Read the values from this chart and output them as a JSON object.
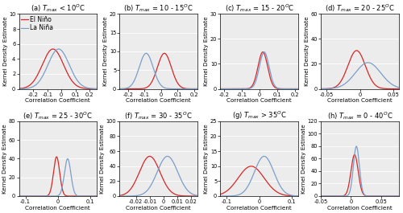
{
  "panels": [
    {
      "label": "(a)",
      "title_prefix": "T",
      "title_suffix": " < 10",
      "xlim": [
        -0.3,
        0.25
      ],
      "ylim": [
        0,
        10
      ],
      "yticks": [
        0,
        2,
        4,
        6,
        8,
        10
      ],
      "xticks": [
        -0.2,
        -0.1,
        0,
        0.1,
        0.2
      ],
      "el_nino_mean": -0.06,
      "el_nino_std": 0.075,
      "la_nina_mean": -0.02,
      "la_nina_std": 0.075,
      "show_legend": true
    },
    {
      "label": "(b)",
      "title_prefix": "T",
      "title_suffix": " = 10 - 15",
      "xlim": [
        -0.25,
        0.22
      ],
      "ylim": [
        0,
        20
      ],
      "yticks": [
        0,
        5,
        10,
        15,
        20
      ],
      "xticks": [
        -0.2,
        -0.1,
        0,
        0.1,
        0.2
      ],
      "el_nino_mean": 0.02,
      "el_nino_std": 0.042,
      "la_nina_mean": -0.09,
      "la_nina_std": 0.042,
      "show_legend": false
    },
    {
      "label": "(c)",
      "title_prefix": "T",
      "title_suffix": " = 15 - 20",
      "xlim": [
        -0.22,
        0.22
      ],
      "ylim": [
        0,
        30
      ],
      "yticks": [
        0,
        10,
        20,
        30
      ],
      "xticks": [
        -0.2,
        -0.1,
        0,
        0.1,
        0.2
      ],
      "el_nino_mean": 0.02,
      "el_nino_std": 0.027,
      "la_nina_mean": 0.028,
      "la_nina_std": 0.027,
      "show_legend": false
    },
    {
      "label": "(d)",
      "title_prefix": "T",
      "title_suffix": " = 20 - 25",
      "xlim": [
        -0.058,
        0.058
      ],
      "ylim": [
        0,
        60
      ],
      "yticks": [
        0,
        20,
        40,
        60
      ],
      "xticks": [
        -0.05,
        0,
        0.05
      ],
      "el_nino_mean": -0.005,
      "el_nino_std": 0.013,
      "la_nina_mean": 0.012,
      "la_nina_std": 0.019,
      "show_legend": false
    },
    {
      "label": "(e)",
      "title_prefix": "T",
      "title_suffix": " = 25 - 30",
      "xlim": [
        -0.12,
        0.12
      ],
      "ylim": [
        0,
        80
      ],
      "yticks": [
        0,
        20,
        40,
        60,
        80
      ],
      "xticks": [
        -0.1,
        0,
        0.1
      ],
      "el_nino_mean": -0.004,
      "el_nino_std": 0.0095,
      "la_nina_mean": 0.03,
      "la_nina_std": 0.01,
      "show_legend": false
    },
    {
      "label": "(f)",
      "title_prefix": "T",
      "title_suffix": " = 30 - 35",
      "xlim": [
        -0.032,
        0.025
      ],
      "ylim": [
        0,
        100
      ],
      "yticks": [
        0,
        20,
        40,
        60,
        80,
        100
      ],
      "xticks": [
        -0.02,
        -0.01,
        0,
        0.01,
        0.02
      ],
      "el_nino_mean": -0.01,
      "el_nino_std": 0.0075,
      "la_nina_mean": 0.003,
      "la_nina_std": 0.0075,
      "show_legend": false
    },
    {
      "label": "(g)",
      "title_prefix": "T",
      "title_suffix": " > 35",
      "xlim": [
        -0.12,
        0.12
      ],
      "ylim": [
        0,
        25
      ],
      "yticks": [
        0,
        5,
        10,
        15,
        20,
        25
      ],
      "xticks": [
        -0.1,
        0,
        0.1
      ],
      "el_nino_mean": -0.025,
      "el_nino_std": 0.04,
      "la_nina_mean": 0.015,
      "la_nina_std": 0.03,
      "show_legend": false
    },
    {
      "label": "(h)",
      "title_prefix": "T",
      "title_suffix": " = 0 - 40",
      "xlim": [
        -0.05,
        0.08
      ],
      "ylim": [
        0,
        120
      ],
      "yticks": [
        0,
        20,
        40,
        60,
        80,
        100,
        120
      ],
      "xticks": [
        -0.05,
        0,
        0.05
      ],
      "el_nino_mean": 0.006,
      "el_nino_std": 0.006,
      "la_nina_mean": 0.009,
      "la_nina_std": 0.005,
      "show_legend": false
    }
  ],
  "el_nino_color": "#d62728",
  "la_nina_color": "#7b9ec8",
  "el_nino_label": "El Niño",
  "la_nina_label": "La Niña",
  "xlabel": "Correlation Coefficient",
  "ylabel": "Kernel Density Estimate",
  "title_fontsize": 6.0,
  "label_fontsize": 5.2,
  "tick_fontsize": 4.8,
  "legend_fontsize": 5.5,
  "bg_color": "#ececec"
}
